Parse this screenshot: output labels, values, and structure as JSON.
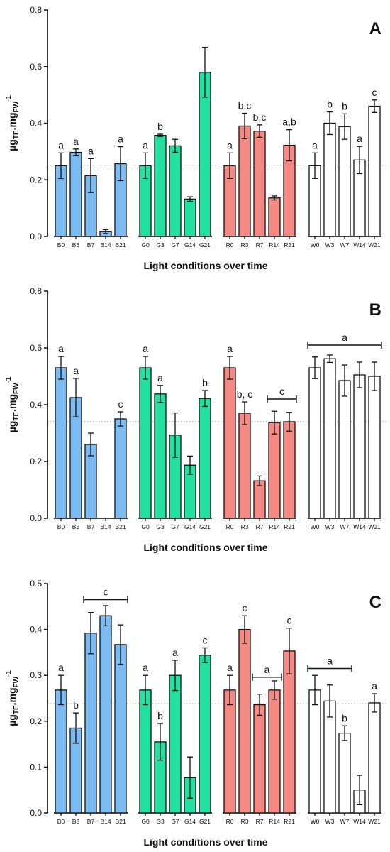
{
  "chart_data": [
    {
      "type": "bar",
      "panel_label": "A",
      "xlabel": "Light conditions over time",
      "ylabel": "µg",
      "ylabel_sub": "TE",
      "ylabel_mid": ".mg",
      "ylabel_sub2": "FW",
      "ylabel_sup": "-1",
      "ylim": [
        0,
        0.8
      ],
      "yticks": [
        "0.0",
        "0.2",
        "0.4",
        "0.6",
        "0.8"
      ],
      "ytick_values": [
        0,
        0.2,
        0.4,
        0.6,
        0.8
      ],
      "reference_line": 0.252,
      "groups": [
        {
          "color": "#7dbcf2",
          "categories": [
            "B0",
            "B3",
            "B7",
            "B14",
            "B21"
          ],
          "values": [
            0.25,
            0.297,
            0.215,
            0.017,
            0.257
          ],
          "errors": [
            0.045,
            0.012,
            0.06,
            0.007,
            0.06
          ],
          "letters": [
            "a",
            "a",
            "a",
            "",
            "a"
          ]
        },
        {
          "color": "#22e0a0",
          "categories": [
            "G0",
            "G3",
            "G7",
            "G14",
            "G21"
          ],
          "values": [
            0.25,
            0.357,
            0.32,
            0.132,
            0.58
          ],
          "errors": [
            0.045,
            0.004,
            0.023,
            0.008,
            0.088
          ],
          "letters": [
            "a",
            "b",
            "",
            "",
            ""
          ]
        },
        {
          "color": "#f58a84",
          "categories": [
            "R0",
            "R3",
            "R7",
            "R14",
            "R21"
          ],
          "values": [
            0.25,
            0.39,
            0.372,
            0.136,
            0.322
          ],
          "errors": [
            0.045,
            0.045,
            0.022,
            0.007,
            0.055
          ],
          "letters": [
            "a",
            "b,c",
            "b,c",
            "",
            "a,b"
          ]
        },
        {
          "color": "#ffffff",
          "categories": [
            "W0",
            "W3",
            "W7",
            "W14",
            "W21"
          ],
          "values": [
            0.25,
            0.4,
            0.388,
            0.27,
            0.46
          ],
          "errors": [
            0.045,
            0.04,
            0.045,
            0.048,
            0.022
          ],
          "letters": [
            "a",
            "b",
            "b",
            "a",
            "c"
          ]
        }
      ],
      "brackets": []
    },
    {
      "type": "bar",
      "panel_label": "B",
      "xlabel": "Light conditions over time",
      "ylabel": "µg",
      "ylabel_sub": "TE",
      "ylabel_mid": ".mg",
      "ylabel_sub2": "FW",
      "ylabel_sup": "-1",
      "ylim": [
        0,
        0.8
      ],
      "yticks": [
        "0.0",
        "0.2",
        "0.4",
        "0.6",
        "0.8"
      ],
      "ytick_values": [
        0,
        0.2,
        0.4,
        0.6,
        0.8
      ],
      "reference_line": 0.34,
      "groups": [
        {
          "color": "#7dbcf2",
          "categories": [
            "B0",
            "B3",
            "B7",
            "B14",
            "B21"
          ],
          "values": [
            0.53,
            0.425,
            0.26,
            0,
            0.35
          ],
          "errors": [
            0.04,
            0.068,
            0.04,
            0,
            0.025
          ],
          "letters": [
            "a",
            "a",
            "",
            "",
            "c"
          ]
        },
        {
          "color": "#22e0a0",
          "categories": [
            "G0",
            "G3",
            "G7",
            "G14",
            "G21"
          ],
          "values": [
            0.53,
            0.438,
            0.293,
            0.187,
            0.422
          ],
          "errors": [
            0.04,
            0.03,
            0.078,
            0.032,
            0.028
          ],
          "letters": [
            "a",
            "a",
            "",
            "",
            "b"
          ]
        },
        {
          "color": "#f58a84",
          "categories": [
            "R0",
            "R3",
            "R7",
            "R14",
            "R21"
          ],
          "values": [
            0.53,
            0.37,
            0.132,
            0.337,
            0.34
          ],
          "errors": [
            0.04,
            0.04,
            0.017,
            0.04,
            0.033
          ],
          "letters": [
            "a",
            "b, c",
            "",
            "",
            ""
          ]
        },
        {
          "color": "#ffffff",
          "categories": [
            "W0",
            "W3",
            "W7",
            "W14",
            "W21"
          ],
          "values": [
            0.53,
            0.562,
            0.485,
            0.505,
            0.5
          ],
          "errors": [
            0.038,
            0.013,
            0.055,
            0.045,
            0.05
          ],
          "letters": [
            "",
            "",
            "",
            "",
            ""
          ]
        }
      ],
      "brackets": [
        {
          "label": "c",
          "from": "R14",
          "to": "R21",
          "y": 0.42
        },
        {
          "label": "a",
          "from": "W0",
          "to": "W21",
          "y": 0.61
        }
      ]
    },
    {
      "type": "bar",
      "panel_label": "C",
      "xlabel": "Light conditions over time",
      "ylabel": "µg",
      "ylabel_sub": "TE",
      "ylabel_mid": ".mg",
      "ylabel_sub2": "FW",
      "ylabel_sup": "-1",
      "ylim": [
        0,
        0.5
      ],
      "yticks": [
        "0.0",
        "0.1",
        "0.2",
        "0.3",
        "0.4",
        "0.5"
      ],
      "ytick_values": [
        0,
        0.1,
        0.2,
        0.3,
        0.4,
        0.5
      ],
      "reference_line": 0.238,
      "groups": [
        {
          "color": "#7dbcf2",
          "categories": [
            "B0",
            "B3",
            "B7",
            "B14",
            "B21"
          ],
          "values": [
            0.268,
            0.185,
            0.392,
            0.43,
            0.367
          ],
          "errors": [
            0.032,
            0.033,
            0.045,
            0.022,
            0.043
          ],
          "letters": [
            "a",
            "b",
            "",
            "",
            ""
          ]
        },
        {
          "color": "#22e0a0",
          "categories": [
            "G0",
            "G3",
            "G7",
            "G14",
            "G21"
          ],
          "values": [
            0.268,
            0.155,
            0.3,
            0.077,
            0.344
          ],
          "errors": [
            0.032,
            0.04,
            0.033,
            0.045,
            0.016
          ],
          "letters": [
            "a",
            "b",
            "a",
            "",
            "c"
          ]
        },
        {
          "color": "#f58a84",
          "categories": [
            "R0",
            "R3",
            "R7",
            "R14",
            "R21"
          ],
          "values": [
            0.268,
            0.4,
            0.236,
            0.268,
            0.353
          ],
          "errors": [
            0.032,
            0.03,
            0.023,
            0.02,
            0.05
          ],
          "letters": [
            "a",
            "c",
            "",
            "",
            "c"
          ]
        },
        {
          "color": "#ffffff",
          "categories": [
            "W0",
            "W3",
            "W7",
            "W14",
            "W21"
          ],
          "values": [
            0.268,
            0.244,
            0.174,
            0.05,
            0.24
          ],
          "errors": [
            0.032,
            0.035,
            0.016,
            0.032,
            0.02
          ],
          "letters": [
            "",
            "",
            "b",
            "",
            "a"
          ]
        }
      ],
      "brackets": [
        {
          "label": "c",
          "from": "B7",
          "to": "B21",
          "y": 0.465
        },
        {
          "label": "a",
          "from": "R7",
          "to": "R14",
          "y": 0.296
        },
        {
          "label": "a",
          "from": "W0",
          "to": "W7",
          "y": 0.315
        }
      ]
    }
  ]
}
